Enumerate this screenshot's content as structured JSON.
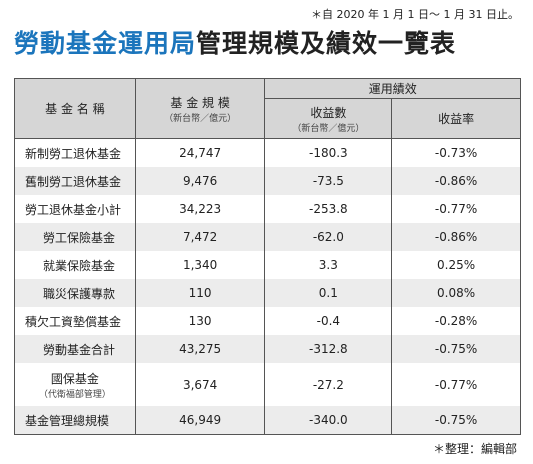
{
  "note": "＊自 2020 年 1 月 1 日～ 1 月 31 日止。",
  "title": {
    "blue": "勞動基金運用局",
    "black": "管理規模及績效一覽表"
  },
  "header": {
    "name": "基 金 名 稱",
    "size": "基 金 規 模",
    "size_unit": "（新台幣／億元）",
    "perf": "運用績效",
    "income": "收益數",
    "income_unit": "（新台幣／億元）",
    "rate": "收益率"
  },
  "rows": [
    {
      "name": "新制勞工退休基金",
      "size": "24,747",
      "income": "-180.3",
      "rate": "-0.73%"
    },
    {
      "name": "舊制勞工退休基金",
      "size": "9,476",
      "income": "-73.5",
      "rate": "-0.86%"
    },
    {
      "name": "勞工退休基金小計",
      "size": "34,223",
      "income": "-253.8",
      "rate": "-0.77%"
    },
    {
      "name": "勞工保險基金",
      "size": "7,472",
      "income": "-62.0",
      "rate": "-0.86%"
    },
    {
      "name": "就業保險基金",
      "size": "1,340",
      "income": "3.3",
      "rate": "0.25%"
    },
    {
      "name": "職災保護專款",
      "size": "110",
      "income": "0.1",
      "rate": "0.08%"
    },
    {
      "name": "積欠工資墊償基金",
      "size": "130",
      "income": "-0.4",
      "rate": "-0.28%"
    },
    {
      "name": "勞動基金合計",
      "size": "43,275",
      "income": "-312.8",
      "rate": "-0.75%"
    },
    {
      "name": "國保基金",
      "sub": "（代衛福部管理）",
      "size": "3,674",
      "income": "-27.2",
      "rate": "-0.77%"
    },
    {
      "name": "基金管理總規模",
      "size": "46,949",
      "income": "-340.0",
      "rate": "-0.75%"
    }
  ],
  "footer": "＊整理：編輯部"
}
